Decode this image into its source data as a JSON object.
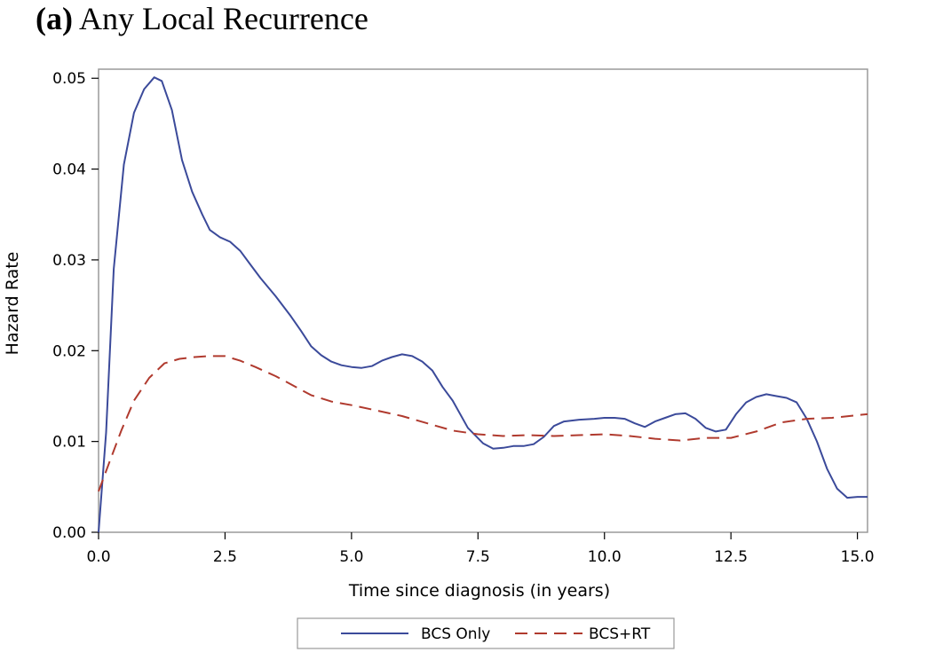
{
  "panel": {
    "letter": "(a)",
    "title": "Any Local Recurrence"
  },
  "chart_data": {
    "type": "line",
    "xlabel": "Time since diagnosis (in years)",
    "ylabel": "Hazard Rate",
    "xlim": [
      0.0,
      15.2
    ],
    "ylim": [
      0.0,
      0.051
    ],
    "xticks": [
      "0.0",
      "2.5",
      "5.0",
      "7.5",
      "10.0",
      "12.5",
      "15.0"
    ],
    "yticks": [
      "0.00",
      "0.01",
      "0.02",
      "0.03",
      "0.04",
      "0.05"
    ],
    "grid": false,
    "legend_position": "bottom",
    "series": [
      {
        "name": "BCS Only",
        "color": "#3b4a9a",
        "style": "solid",
        "x": [
          0,
          0.15,
          0.3,
          0.5,
          0.7,
          0.9,
          1.1,
          1.25,
          1.45,
          1.65,
          1.85,
          2.05,
          2.2,
          2.4,
          2.6,
          2.8,
          3.0,
          3.2,
          3.5,
          3.8,
          4.0,
          4.2,
          4.4,
          4.6,
          4.8,
          5.0,
          5.2,
          5.4,
          5.6,
          5.8,
          6.0,
          6.2,
          6.4,
          6.6,
          6.8,
          7.0,
          7.3,
          7.6,
          7.8,
          8.0,
          8.2,
          8.4,
          8.6,
          8.8,
          9.0,
          9.2,
          9.5,
          9.8,
          10.0,
          10.2,
          10.4,
          10.6,
          10.8,
          11.0,
          11.2,
          11.4,
          11.6,
          11.8,
          12.0,
          12.2,
          12.4,
          12.6,
          12.8,
          13.0,
          13.2,
          13.4,
          13.6,
          13.8,
          14.0,
          14.2,
          14.4,
          14.6,
          14.8,
          15.0,
          15.2
        ],
        "y": [
          0.0,
          0.011,
          0.029,
          0.0405,
          0.0462,
          0.0488,
          0.0501,
          0.0497,
          0.0465,
          0.041,
          0.0375,
          0.035,
          0.0333,
          0.0325,
          0.032,
          0.031,
          0.0295,
          0.028,
          0.026,
          0.0238,
          0.0222,
          0.0205,
          0.0195,
          0.0188,
          0.0184,
          0.0182,
          0.0181,
          0.0183,
          0.0189,
          0.0193,
          0.0196,
          0.0194,
          0.0188,
          0.0178,
          0.016,
          0.0145,
          0.0115,
          0.0098,
          0.0092,
          0.0093,
          0.0095,
          0.0095,
          0.0097,
          0.0105,
          0.0117,
          0.0122,
          0.0124,
          0.0125,
          0.0126,
          0.0126,
          0.0125,
          0.012,
          0.0116,
          0.0122,
          0.0126,
          0.013,
          0.0131,
          0.0125,
          0.0115,
          0.0111,
          0.0113,
          0.013,
          0.0143,
          0.0149,
          0.0152,
          0.015,
          0.0148,
          0.0143,
          0.0125,
          0.01,
          0.007,
          0.0048,
          0.0038,
          0.0039,
          0.0039
        ]
      },
      {
        "name": "BCS+RT",
        "color": "#b03a2e",
        "style": "dashed",
        "x": [
          0,
          0.2,
          0.45,
          0.7,
          1.0,
          1.3,
          1.6,
          1.9,
          2.2,
          2.5,
          2.8,
          3.1,
          3.5,
          3.9,
          4.2,
          4.6,
          5.0,
          5.5,
          6.0,
          6.5,
          7.0,
          7.5,
          8.0,
          8.5,
          9.0,
          9.5,
          10.0,
          10.5,
          11.0,
          11.5,
          12.0,
          12.5,
          13.0,
          13.5,
          14.0,
          14.5,
          15.0,
          15.2
        ],
        "y": [
          0.0045,
          0.0075,
          0.0112,
          0.0145,
          0.017,
          0.0186,
          0.0191,
          0.0193,
          0.0194,
          0.0194,
          0.0189,
          0.0182,
          0.0172,
          0.016,
          0.0151,
          0.0144,
          0.014,
          0.0134,
          0.0128,
          0.012,
          0.0112,
          0.0108,
          0.0106,
          0.0107,
          0.0106,
          0.0107,
          0.0108,
          0.0106,
          0.0103,
          0.0101,
          0.0104,
          0.0104,
          0.0111,
          0.0121,
          0.0125,
          0.0126,
          0.0129,
          0.013
        ]
      }
    ]
  }
}
